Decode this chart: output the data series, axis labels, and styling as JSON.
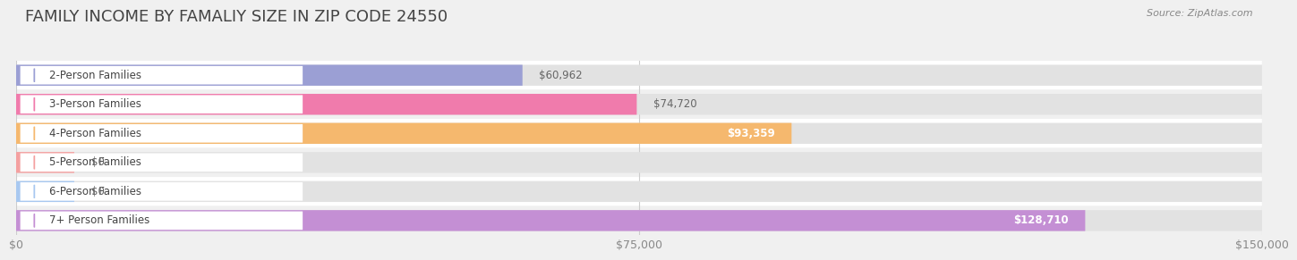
{
  "title": "FAMILY INCOME BY FAMALIY SIZE IN ZIP CODE 24550",
  "source": "Source: ZipAtlas.com",
  "categories": [
    "2-Person Families",
    "3-Person Families",
    "4-Person Families",
    "5-Person Families",
    "6-Person Families",
    "7+ Person Families"
  ],
  "values": [
    60962,
    74720,
    93359,
    0,
    0,
    128710
  ],
  "zero_stub": 7000,
  "bar_colors": [
    "#9b9fd4",
    "#f07bac",
    "#f5b86e",
    "#f4a0a0",
    "#a8c8f0",
    "#c48fd4"
  ],
  "xlim": [
    0,
    150000
  ],
  "xticks": [
    0,
    75000,
    150000
  ],
  "xtick_labels": [
    "$0",
    "$75,000",
    "$150,000"
  ],
  "value_labels": [
    "$60,962",
    "$74,720",
    "$93,359",
    "$0",
    "$0",
    "$128,710"
  ],
  "bg_color": "#f0f0f0",
  "bar_bg_color": "#e2e2e2",
  "row_bg_color": "#f7f7f7",
  "title_fontsize": 13,
  "label_fontsize": 8.5,
  "value_fontsize": 8.5,
  "tick_fontsize": 9
}
